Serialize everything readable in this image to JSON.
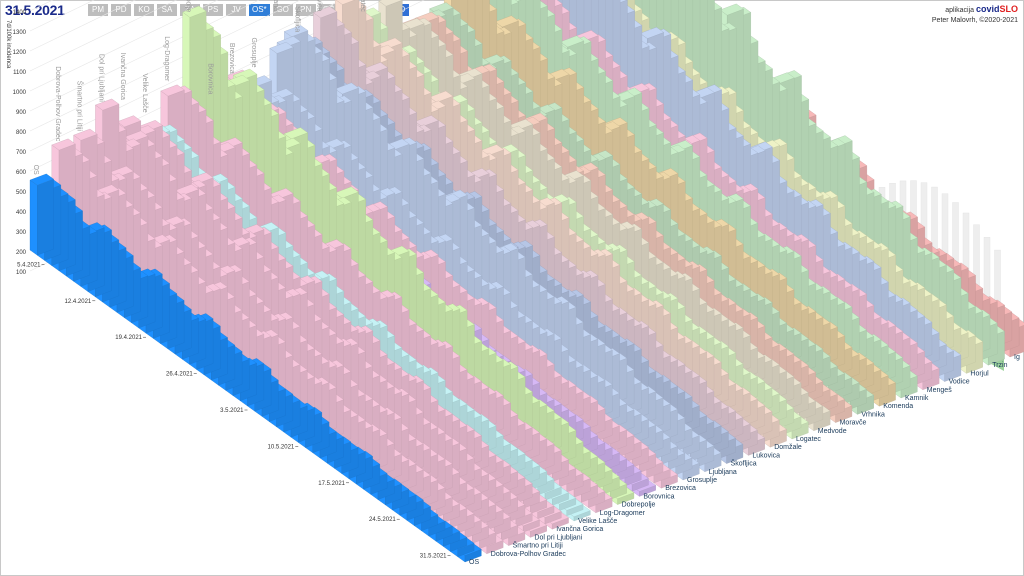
{
  "header": {
    "date": "31.5.2021",
    "regions": [
      "PM",
      "PD",
      "KO",
      "SA",
      "ZA",
      "PS",
      "JV",
      "OS*",
      "GO",
      "PN",
      "GŠ",
      "OK"
    ],
    "active_region": "OS*",
    "view_button": "3D",
    "credit_prefix": "aplikacija",
    "brand_a": "covid",
    "brand_b": "SLO",
    "author": "Peter Malovrh, ©2020-2021"
  },
  "colors": {
    "active": "#2f7ed8",
    "bands": [
      "#7cc47c",
      "#f0e07a",
      "#f7b35a",
      "#f07070"
    ]
  },
  "chart_data": {
    "type": "bar",
    "view": "3d",
    "ylabel": "7d/100k incidenca",
    "yticks": [
      100,
      200,
      300,
      400,
      500,
      600,
      700,
      800,
      900,
      1000,
      1100,
      1200,
      1300,
      1400,
      1500
    ],
    "ylim": [
      0,
      1600
    ],
    "date_ticks": [
      "5.4.2021",
      "12.4.2021",
      "19.4.2021",
      "26.4.2021",
      "3.5.2021",
      "10.5.2021",
      "17.5.2021",
      "24.5.2021",
      "31.5.2021"
    ],
    "municipalities": [
      "OS",
      "Dobrova-Polhov Gradec",
      "Šmartno pri Litiji",
      "Dol pri Ljubljani",
      "Ivančna Gorica",
      "Velike Lašče",
      "Log-Dragomer",
      "Dobrepolje",
      "Borovnica",
      "Brezovica",
      "Grosuplje",
      "Ljubljana",
      "Škofljica",
      "Lukovica",
      "Domžale",
      "Logatec",
      "Medvode",
      "Moravče",
      "Vrhnika",
      "Komenda",
      "Kamnik",
      "Mengeš",
      "Vodice",
      "Horjul",
      "Trzin",
      "Ig"
    ],
    "series_colors": [
      "#1e90ff",
      "#f7c6dc",
      "#f7c6dc",
      "#f7c6dc",
      "#f7c6dc",
      "#c5f2f5",
      "#f7c6dc",
      "#d7f7b8",
      "#d6b8f5",
      "#f7c6dc",
      "#c3d5f3",
      "#c3d5f3",
      "#b6c6e6",
      "#e8cfda",
      "#f7dccf",
      "#dff7c9",
      "#e9e2cf",
      "#f5cdbf",
      "#c6e6c6",
      "#eed7a8",
      "#c9eec9",
      "#f7c6dc",
      "#c3d5f3",
      "#eef2c6",
      "#c9eec9",
      "#f7b8b8"
    ],
    "start_values": [
      330,
      450,
      460,
      560,
      530,
      430,
      540,
      830,
      400,
      460,
      450,
      680,
      540,
      600,
      640,
      520,
      580,
      520,
      480,
      600,
      700,
      620,
      900,
      720,
      1260,
      700
    ],
    "end_values": [
      30,
      40,
      45,
      30,
      25,
      20,
      40,
      30,
      30,
      40,
      50,
      60,
      60,
      55,
      70,
      60,
      65,
      50,
      60,
      80,
      90,
      90,
      100,
      120,
      130,
      120
    ]
  }
}
